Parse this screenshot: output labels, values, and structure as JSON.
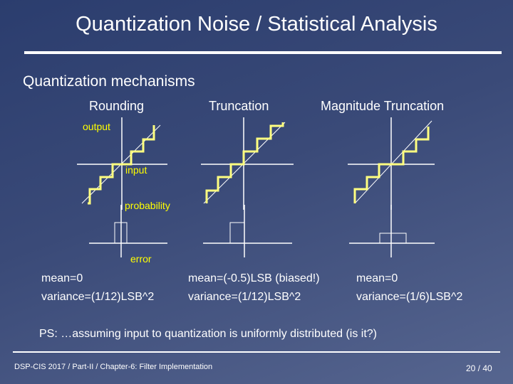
{
  "title": "Quantization Noise / Statistical Analysis",
  "subtitle": "Quantization mechanisms",
  "columns": [
    {
      "heading": "Rounding",
      "mean": "mean=0",
      "variance": "variance=(1/12)LSB^2"
    },
    {
      "heading": "Truncation",
      "mean": "mean=(-0.5)LSB (biased!)",
      "variance": "variance=(1/12)LSB^2"
    },
    {
      "heading": "Magnitude Truncation",
      "mean": "mean=0",
      "variance": "variance=(1/6)LSB^2"
    }
  ],
  "labels": {
    "output": "output",
    "input": "input",
    "probability": "probability",
    "error": "error"
  },
  "ps": "PS: …assuming input to quantization is uniformly distributed (is it?)",
  "footer": "DSP-CIS 2017  /  Part-II  /  Chapter-6: Filter Implementation",
  "page_number": "20 / 40",
  "colors": {
    "accent": "#ffff80",
    "text": "#ffffff",
    "label": "#ffff00"
  }
}
